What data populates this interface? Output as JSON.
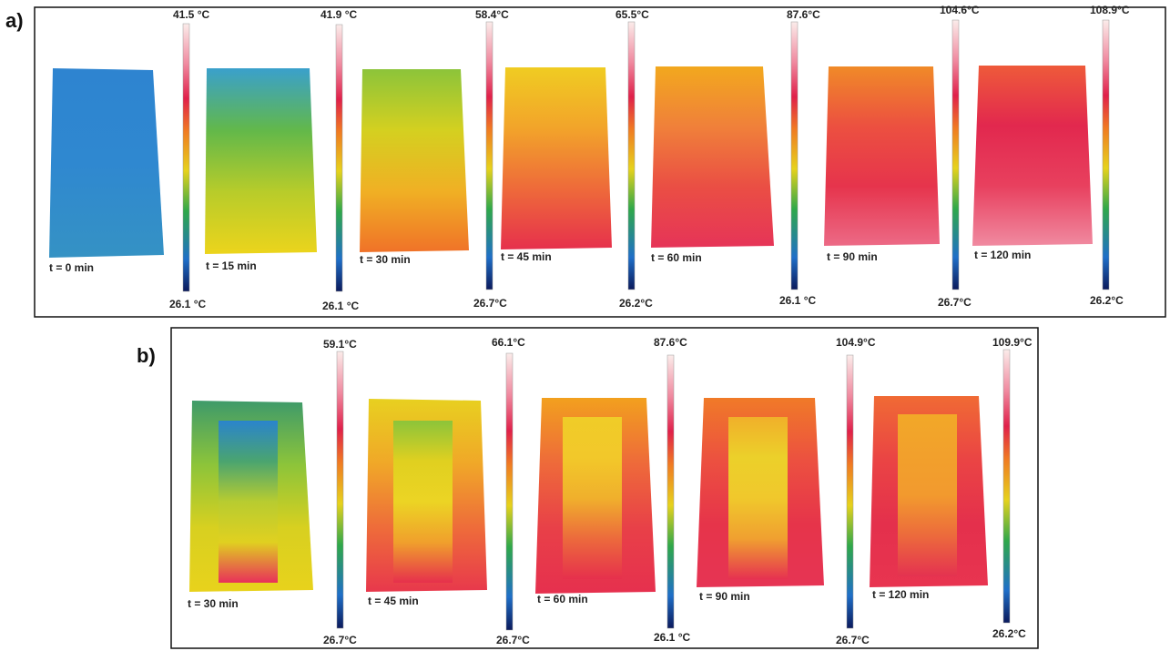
{
  "panels": [
    {
      "label": "a)",
      "images": [
        {
          "time": "t = 0 min",
          "max": "41.5 °C",
          "min": "26.1 °C"
        },
        {
          "time": "t = 15 min",
          "max": "41.9 °C",
          "min": "26.1 °C"
        },
        {
          "time": "t = 30 min",
          "max": "58.4°C",
          "min": "26.7°C"
        },
        {
          "time": "t = 45 min",
          "max": "65.5°C",
          "min": "26.2°C"
        },
        {
          "time": "t = 60 min",
          "max": "87.6°C",
          "min": "26.1 °C"
        },
        {
          "time": "t = 90 min",
          "max": "104.6°C",
          "min": "26.7°C"
        },
        {
          "time": "t = 120 min",
          "max": "108.9°C",
          "min": "26.2°C"
        }
      ]
    },
    {
      "label": "b)",
      "images": [
        {
          "time": "t = 30 min",
          "max": "59.1°C",
          "min": "26.7°C"
        },
        {
          "time": "t = 45 min",
          "max": "66.1°C",
          "min": "26.7°C"
        },
        {
          "time": "t = 60 min",
          "max": "87.6°C",
          "min": "26.1 °C"
        },
        {
          "time": "t = 90 min",
          "max": "104.9°C",
          "min": "26.7°C"
        },
        {
          "time": "t = 120 min",
          "max": "109.9°C",
          "min": "26.2°C"
        }
      ]
    }
  ]
}
